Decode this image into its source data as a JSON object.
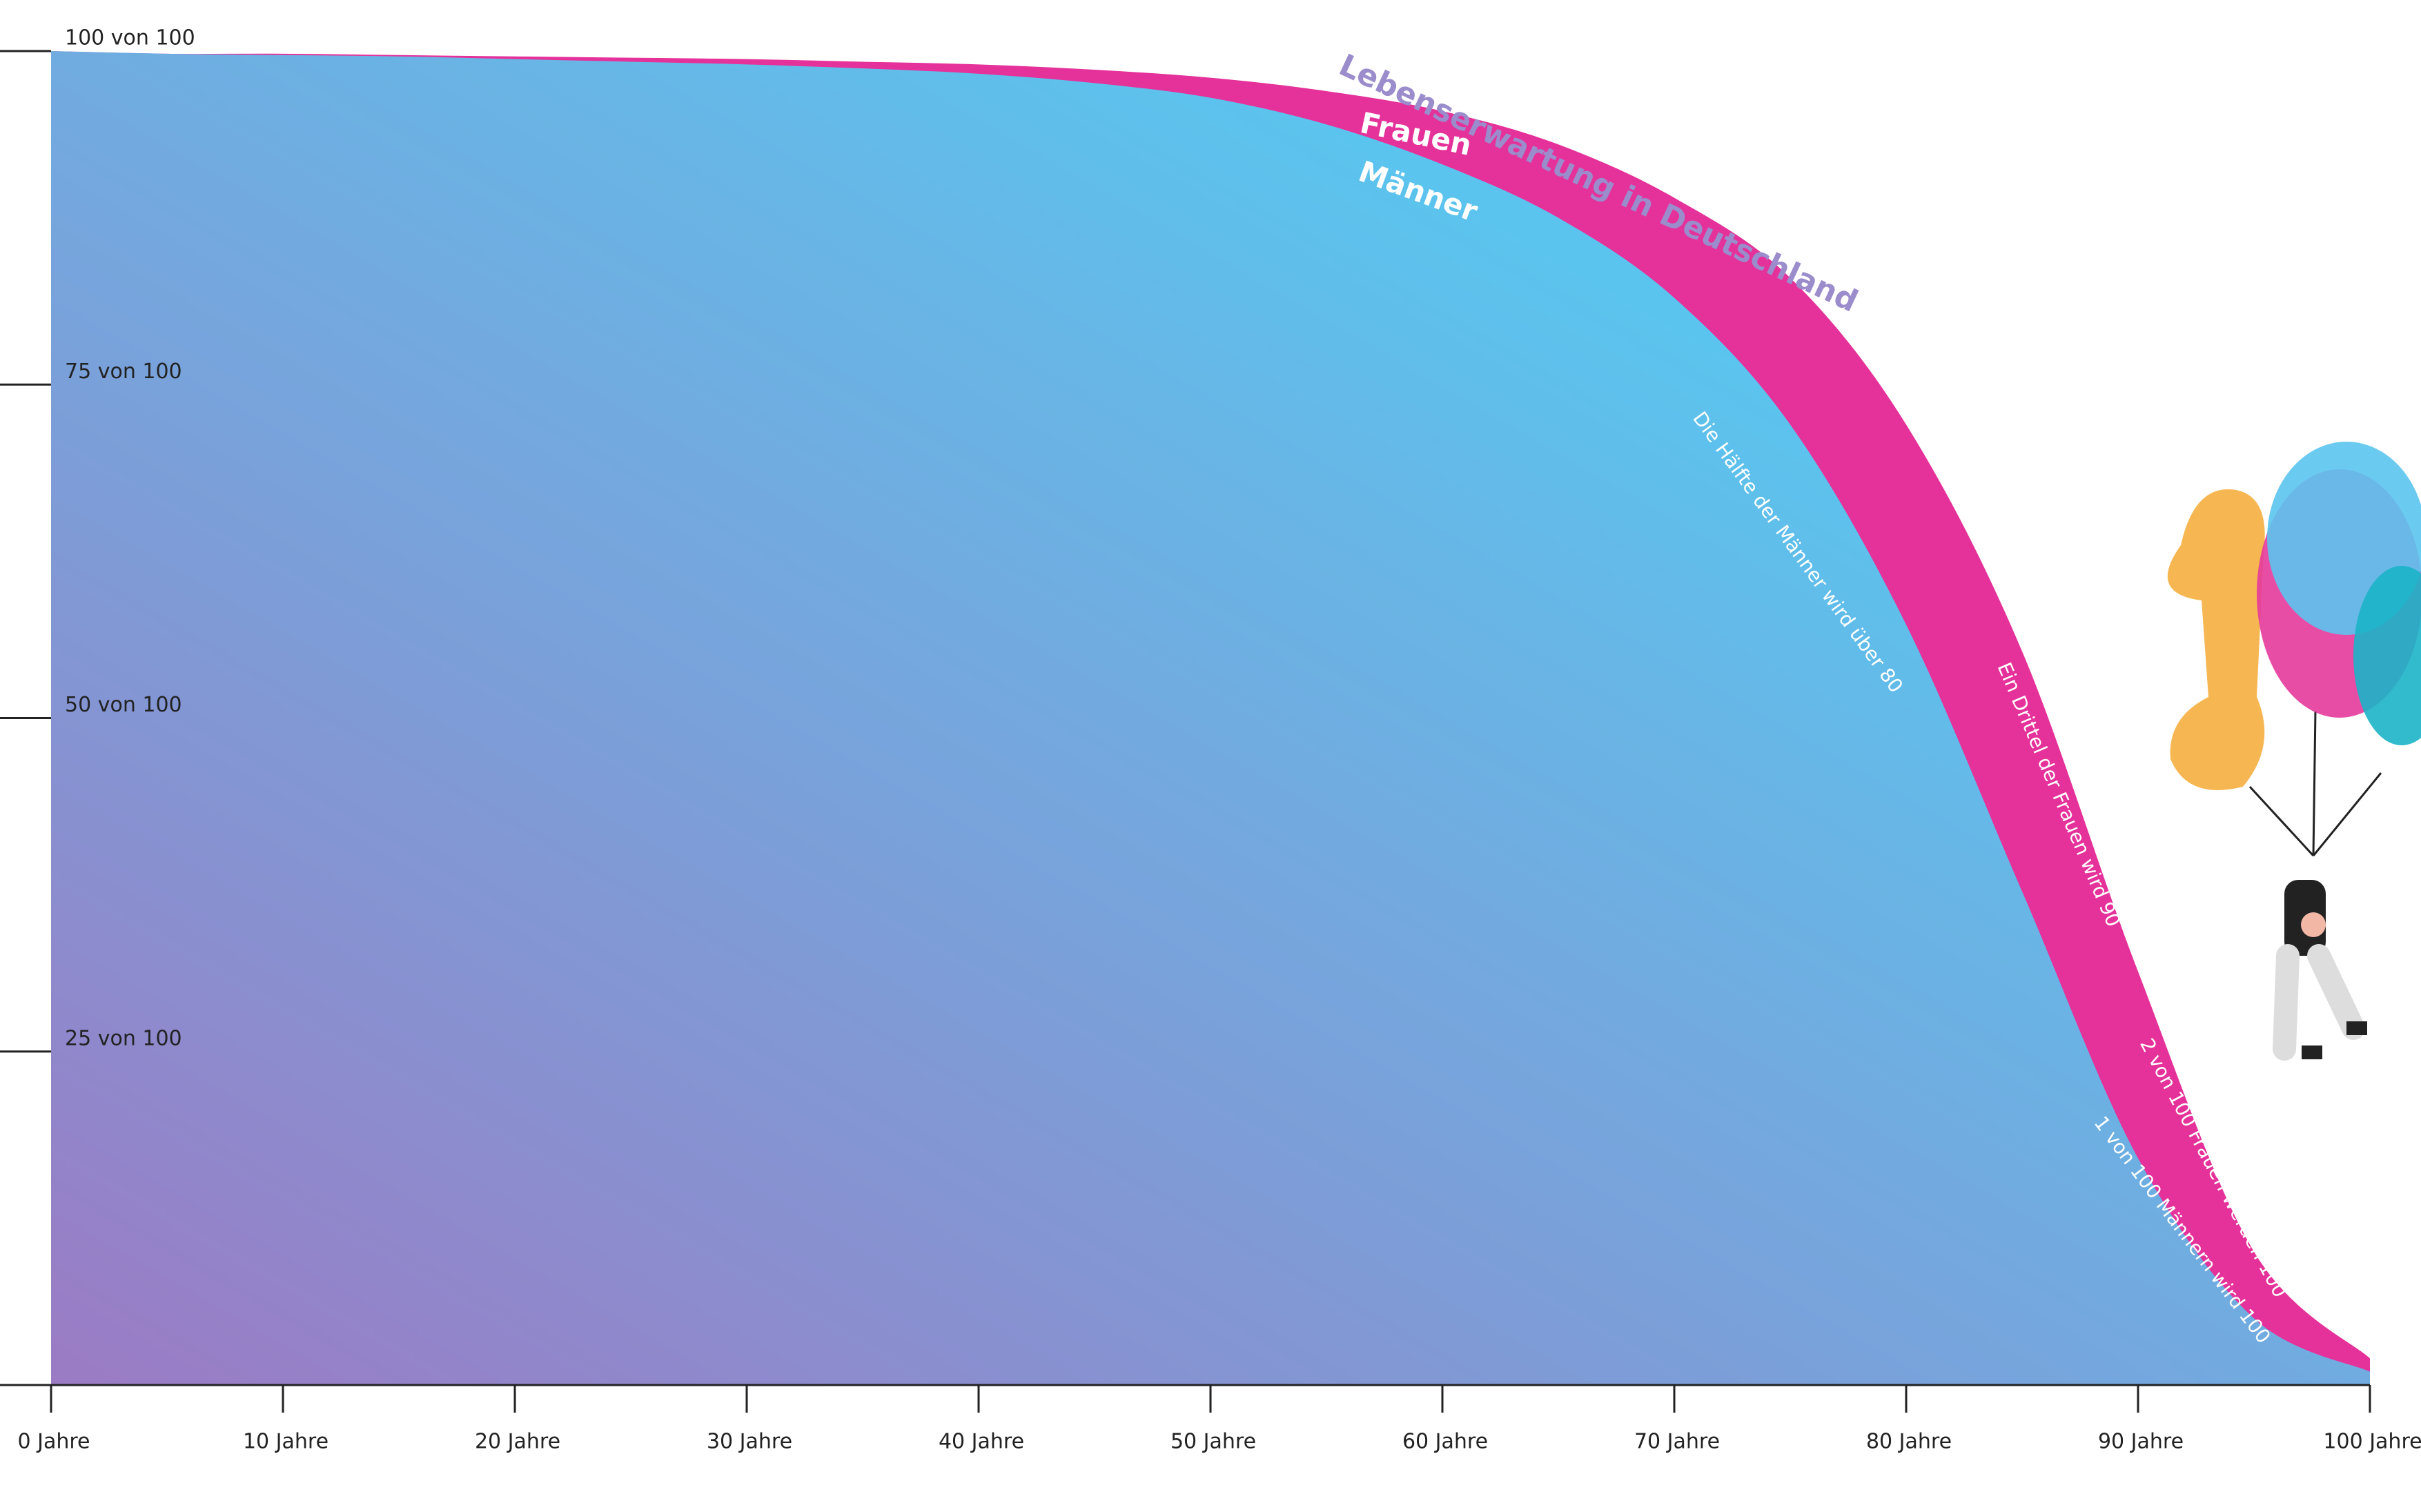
{
  "chart_data": {
    "type": "area",
    "title": "Lebenserwartung in Deutschland",
    "x": [
      0,
      5,
      10,
      15,
      20,
      25,
      30,
      35,
      40,
      45,
      50,
      55,
      60,
      65,
      70,
      75,
      80,
      85,
      90,
      95,
      100
    ],
    "series": [
      {
        "name": "Frauen",
        "color": "#e5319a",
        "values": [
          100,
          99.8,
          99.8,
          99.7,
          99.6,
          99.5,
          99.4,
          99.2,
          99,
          98.6,
          98,
          97,
          95.5,
          93,
          89,
          83,
          72,
          55,
          31,
          10,
          2
        ]
      },
      {
        "name": "Männer",
        "color": "#5bc4ee",
        "values": [
          100,
          99.8,
          99.7,
          99.6,
          99.4,
          99.2,
          99,
          98.7,
          98.3,
          97.6,
          96.5,
          94.5,
          91.5,
          87.5,
          81.5,
          72,
          57,
          37,
          17,
          5,
          1
        ]
      }
    ],
    "xlim": [
      0,
      100
    ],
    "ylim": [
      0,
      100
    ],
    "xticks": [
      {
        "value": 0,
        "label": "0 Jahre"
      },
      {
        "value": 10,
        "label": "10 Jahre"
      },
      {
        "value": 20,
        "label": "20 Jahre"
      },
      {
        "value": 30,
        "label": "30 Jahre"
      },
      {
        "value": 40,
        "label": "40 Jahre"
      },
      {
        "value": 50,
        "label": "50 Jahre"
      },
      {
        "value": 60,
        "label": "60 Jahre"
      },
      {
        "value": 70,
        "label": "70 Jahre"
      },
      {
        "value": 80,
        "label": "80 Jahre"
      },
      {
        "value": 90,
        "label": "90 Jahre"
      },
      {
        "value": 100,
        "label": "100 Jahre"
      }
    ],
    "yticks": [
      {
        "value": 25,
        "label": "25 von 100"
      },
      {
        "value": 50,
        "label": "50 von 100"
      },
      {
        "value": 75,
        "label": "75 von 100"
      },
      {
        "value": 100,
        "label": "100 von 100"
      }
    ],
    "annotations": [
      "Die Hälfte der Männer wird über 80",
      "Ein Drittel der Frauen wird 90",
      "2 von 100 Frauen werden 100",
      "1 von 100 Männern wird 100"
    ]
  }
}
